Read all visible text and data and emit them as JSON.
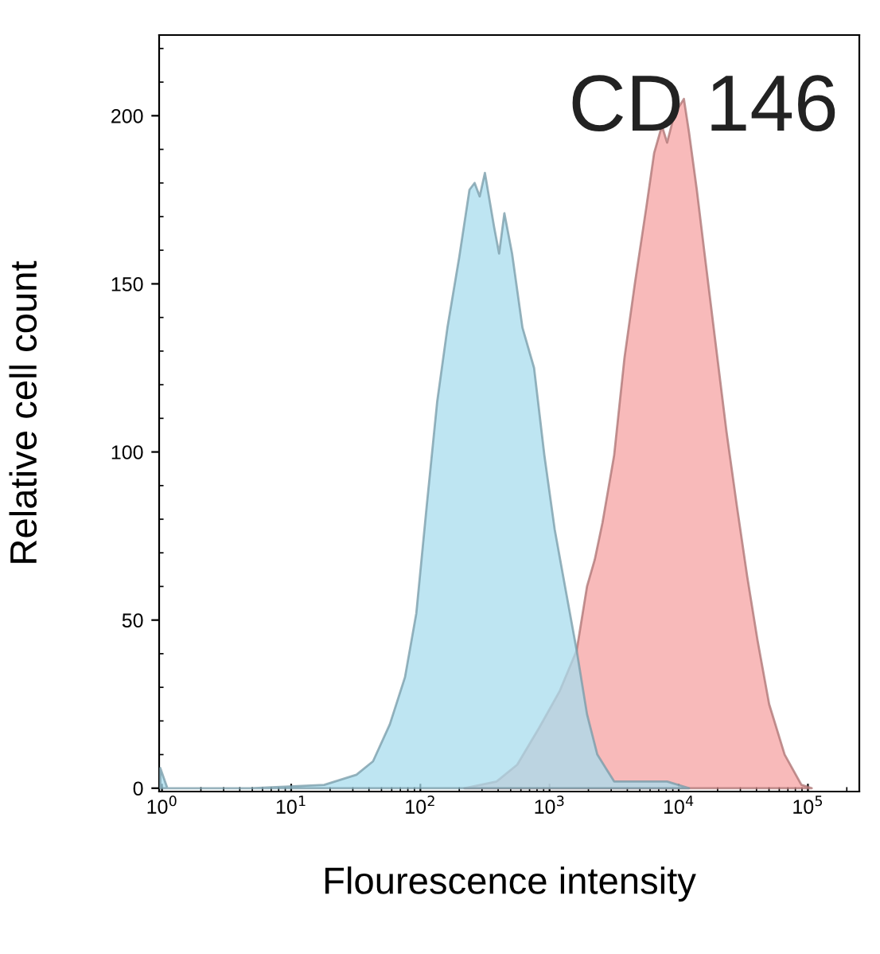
{
  "chart_data": {
    "type": "area",
    "xlabel": "Flourescence intensity",
    "ylabel": "Relative cell count",
    "log": "x",
    "annotations": [
      "CD 146"
    ],
    "xlim": [
      0.95,
      250000
    ],
    "ylim": [
      -1,
      224
    ],
    "xticks": [
      {
        "value": 1,
        "label": "10$^{0}$"
      },
      {
        "value": 10,
        "label": "10$^{1}$"
      },
      {
        "value": 100,
        "label": "10$^{2}$"
      },
      {
        "value": 1000,
        "label": "10$^{3}$"
      },
      {
        "value": 10000,
        "label": "10$^{4}$"
      },
      {
        "value": 100000,
        "label": "10$^{5}$"
      }
    ],
    "yticks": [
      0,
      50,
      100,
      150,
      200
    ],
    "grid": false,
    "legend": false,
    "series": [
      {
        "color": "#f5a3a3",
        "x": [
          219,
          389,
          562,
          832,
          1202,
          1622,
          1950,
          2239,
          2570,
          3162,
          3802,
          4571,
          5623,
          6457,
          7413,
          8128,
          8913,
          9772,
          10965,
          12023,
          13804,
          15849,
          19055,
          23442,
          28184,
          33884,
          40738,
          50119,
          66069,
          89125,
          107152
        ],
        "values": [
          0,
          2,
          7,
          18,
          29,
          41,
          60,
          68,
          79,
          99,
          128,
          150,
          173,
          189,
          197,
          192,
          198,
          202,
          205,
          195,
          178,
          159,
          134,
          106,
          84,
          63,
          44,
          25,
          10,
          1,
          0
        ]
      },
      {
        "color": "#a8dcee",
        "x": [
          0.97,
          1.1,
          4.8,
          18,
          32,
          43,
          58,
          76,
          93,
          112,
          135,
          162,
          200,
          240,
          263,
          288,
          316,
          372,
          407,
          447,
          513,
          617,
          759,
          912,
          1096,
          1318,
          1622,
          1950,
          2344,
          3162,
          6761,
          8128,
          12023
        ],
        "values": [
          6,
          0,
          0,
          1,
          4,
          8,
          19,
          33,
          52,
          84,
          115,
          137,
          158,
          178,
          180,
          176,
          183,
          167,
          159,
          171,
          159,
          137,
          125,
          99,
          77,
          60,
          41,
          22,
          10,
          2,
          2,
          2,
          0
        ]
      }
    ]
  }
}
